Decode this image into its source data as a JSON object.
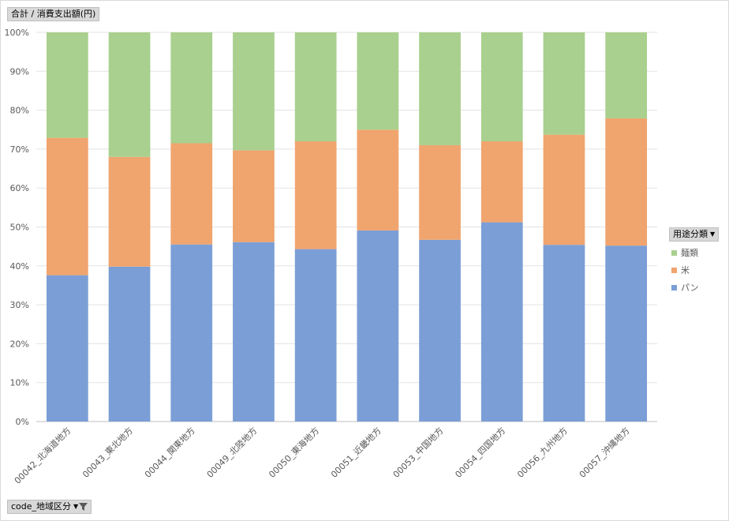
{
  "value_field": {
    "label": "合計 / 消費支出額(円)"
  },
  "axis_field": {
    "label": "code_地域区分"
  },
  "legend_field": {
    "label": "用途分類"
  },
  "chart_data": {
    "type": "bar",
    "stacked": true,
    "percent_stacked": true,
    "title": "",
    "xlabel": "",
    "ylabel": "",
    "ylim": [
      0,
      100
    ],
    "yticks": [
      "0%",
      "10%",
      "20%",
      "30%",
      "40%",
      "50%",
      "60%",
      "70%",
      "80%",
      "90%",
      "100%"
    ],
    "grid": true,
    "legend_position": "right",
    "categories": [
      "00042_北海道地方",
      "00043_東北地方",
      "00044_関東地方",
      "00049_北陸地方",
      "00050_東海地方",
      "00051_近畿地方",
      "00053_中国地方",
      "00054_四国地方",
      "00056_九州地方",
      "00057_沖縄地方"
    ],
    "series": [
      {
        "name": "パン",
        "color": "#7b9ed6",
        "values": [
          37.6,
          39.8,
          45.5,
          46.1,
          44.3,
          49.1,
          46.7,
          51.2,
          45.4,
          45.2
        ]
      },
      {
        "name": "米",
        "color": "#f0a46e",
        "values": [
          35.3,
          28.2,
          26.0,
          23.6,
          27.7,
          25.9,
          24.3,
          20.8,
          28.3,
          32.7
        ]
      },
      {
        "name": "麺類",
        "color": "#a9d08e",
        "values": [
          27.1,
          32.0,
          28.5,
          30.3,
          28.0,
          25.0,
          29.0,
          28.0,
          26.3,
          22.1
        ]
      }
    ]
  }
}
